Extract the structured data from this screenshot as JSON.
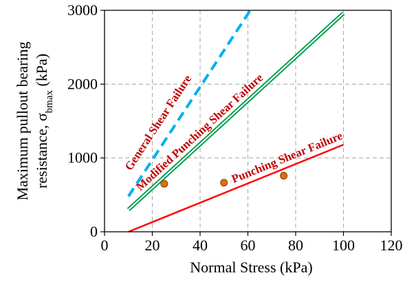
{
  "chart_data": {
    "type": "line",
    "title": "",
    "xlabel": "Normal Stress (kPa)",
    "ylabel": {
      "line1": "Maximum pullout bearing",
      "line2_prefix": "resistance, σ",
      "line2_subscript": "bmax",
      "line2_suffix": " (kPa)"
    },
    "xlim": [
      0,
      120
    ],
    "ylim": [
      0,
      3000
    ],
    "x_ticks": [
      "0",
      "20",
      "40",
      "60",
      "80",
      "100",
      "120"
    ],
    "y_ticks": [
      "0",
      "1000",
      "2000",
      "3000"
    ],
    "grid": "dashed",
    "series": [
      {
        "name": "General  Shear Failure",
        "style": "dashed",
        "color": "#00b0f0",
        "x": [
          10,
          61
        ],
        "y": [
          480,
          3000
        ]
      },
      {
        "name": "Modified Punching Shear Failure",
        "style": "double",
        "color": "#00a050",
        "x": [
          10,
          100
        ],
        "y": [
          300,
          2960
        ]
      },
      {
        "name": "Punching Shear Failure",
        "style": "solid",
        "color": "#ff0000",
        "x": [
          10,
          100
        ],
        "y": [
          0,
          1180
        ]
      },
      {
        "style": "points",
        "color": "#e36c09",
        "x": [
          25,
          50,
          75
        ],
        "y": [
          650,
          665,
          760
        ]
      }
    ],
    "annotations": [
      {
        "text": "General  Shear Failure",
        "x": 11,
        "y": 820,
        "series": 0,
        "color": "#c00000"
      },
      {
        "text": "Modified Punching Shear Failure",
        "x": 15,
        "y": 550,
        "series": 1,
        "color": "#c00000"
      },
      {
        "text": "Punching Shear Failure",
        "x": 54,
        "y": 660,
        "series": 2,
        "color": "#c00000"
      }
    ]
  }
}
